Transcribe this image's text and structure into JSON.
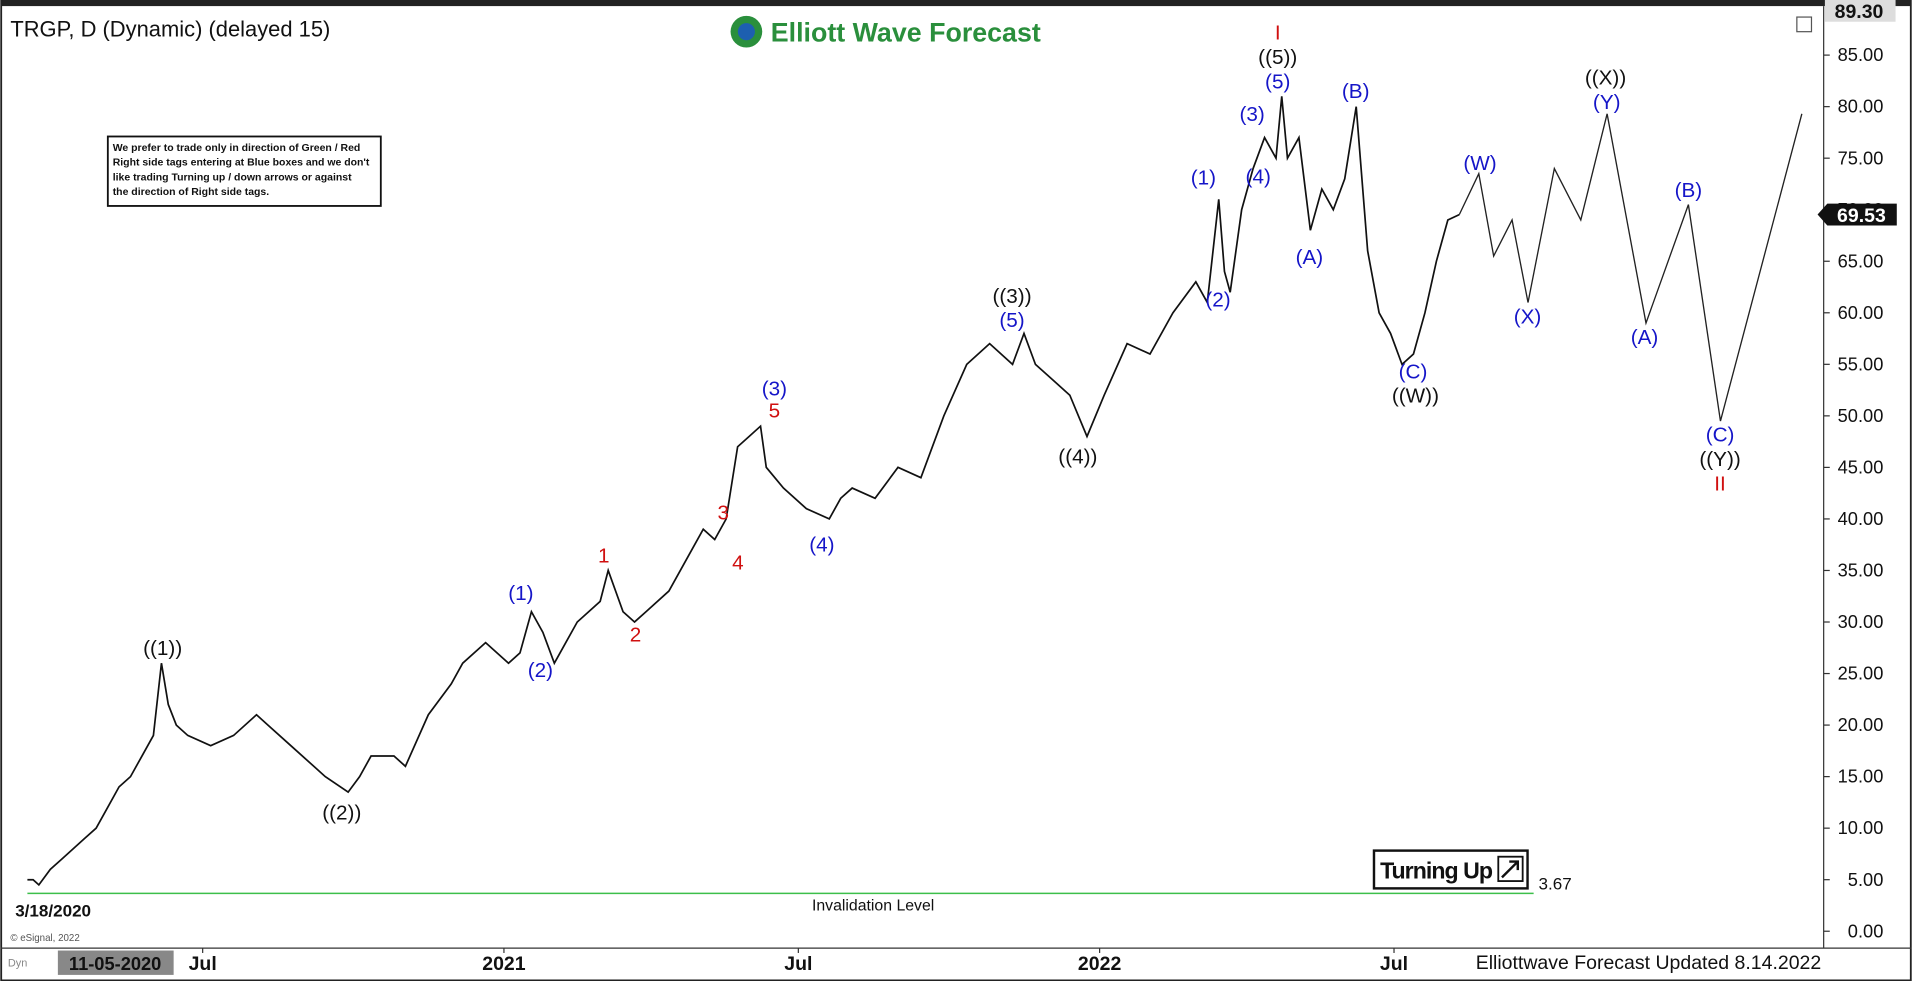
{
  "chart_data": {
    "type": "line",
    "title": "TRGP, D (Dynamic) (delayed 15)",
    "logo": "Elliott Wave Forecast",
    "note": [
      "We prefer to trade only in direction of Green / Red",
      "Right side tags entering at Blue boxes and we don't",
      "like trading Turning up / down arrows or against",
      "the direction of Right side tags."
    ],
    "button": "Turning Up",
    "start_label": "3/18/2020",
    "cursor_date": "11-05-2020",
    "copyright": "© eSignal, 2022",
    "dyn": "Dyn",
    "footer": "Elliottwave Forecast Updated 8.14.2022",
    "top_price": {
      "value": 89.3,
      "label": "89.30"
    },
    "last_price": 69.53,
    "invalidation": {
      "value": 3.67,
      "label": "Invalidation Level"
    },
    "ylim": [
      -1.4,
      89.4
    ],
    "yticks": [
      {
        "value": 0,
        "label": "0.00"
      },
      {
        "value": 5,
        "label": "5.00"
      },
      {
        "value": 10,
        "label": "10.00"
      },
      {
        "value": 15,
        "label": "15.00"
      },
      {
        "value": 20,
        "label": "20.00"
      },
      {
        "value": 25,
        "label": "25.00"
      },
      {
        "value": 30,
        "label": "30.00"
      },
      {
        "value": 35,
        "label": "35.00"
      },
      {
        "value": 40,
        "label": "40.00"
      },
      {
        "value": 45,
        "label": "45.00"
      },
      {
        "value": 50,
        "label": "50.00"
      },
      {
        "value": 55,
        "label": "55.00"
      },
      {
        "value": 60,
        "label": "60.00"
      },
      {
        "value": 65,
        "label": "65.00"
      },
      {
        "value": 70,
        "label": "70.00"
      },
      {
        "value": 75,
        "label": "75.00"
      },
      {
        "value": 80,
        "label": "80.00"
      },
      {
        "value": 85,
        "label": "85.00"
      }
    ],
    "xlim": [
      -2.34,
      156.7
    ],
    "xticks": [
      {
        "value": 15.3,
        "label": "Jul"
      },
      {
        "value": 41.6,
        "label": "2021"
      },
      {
        "value": 67.3,
        "label": "Jul"
      },
      {
        "value": 93.6,
        "label": "2022"
      },
      {
        "value": 119.3,
        "label": "Jul"
      }
    ],
    "series": [
      {
        "name": "TRGP",
        "color": "#111111",
        "x": [
          0,
          0.5,
          1,
          2,
          3,
          4,
          5,
          6,
          7,
          8,
          9,
          10,
          11,
          11.7,
          12.3,
          13,
          14,
          16,
          18,
          20,
          21,
          23,
          25,
          26,
          28,
          29,
          30,
          32,
          33,
          35,
          37,
          38,
          40,
          42,
          43,
          44,
          45,
          46,
          47,
          48,
          50,
          50.7,
          52,
          53,
          54,
          56,
          58,
          59,
          60,
          61,
          62,
          63,
          64,
          64.5,
          66,
          68,
          70,
          71,
          72,
          74,
          76,
          78,
          80,
          82,
          84,
          86,
          87,
          88,
          89,
          91,
          92.5,
          94,
          96,
          98,
          100,
          102,
          103,
          104,
          104.5,
          105,
          106,
          107,
          108,
          109,
          109.5,
          110,
          111,
          112,
          113,
          114,
          115,
          116,
          117,
          118,
          119,
          120,
          121,
          122,
          123,
          124,
          125
        ],
        "values": [
          5,
          5,
          4.5,
          6,
          7,
          8,
          9,
          10,
          12,
          14,
          15,
          17,
          19,
          26,
          22,
          20,
          19,
          18,
          19,
          21,
          20,
          18,
          16,
          15,
          13.5,
          15,
          17,
          17,
          16,
          21,
          24,
          26,
          28,
          26,
          27,
          31,
          29,
          26,
          28,
          30,
          32,
          35,
          31,
          30,
          31,
          33,
          37,
          39,
          38,
          40,
          47,
          48,
          49,
          45,
          43,
          41,
          40,
          42,
          43,
          42,
          45,
          44,
          50,
          55,
          57,
          55,
          58,
          55,
          54,
          52,
          48,
          52,
          57,
          56,
          60,
          63,
          61,
          71,
          64,
          62,
          70,
          74,
          77,
          75,
          81,
          75,
          77,
          68,
          72,
          70,
          73,
          80,
          66,
          60,
          58,
          55,
          56,
          60,
          65,
          69,
          69.53
        ]
      },
      {
        "name": "Projection",
        "color": "#222222",
        "x": [
          125,
          126.7,
          128,
          129.6,
          131,
          133.3,
          135.6,
          137.9,
          141.3,
          145,
          147.8,
          154.9
        ],
        "values": [
          69.53,
          73.5,
          65.5,
          69,
          61,
          74,
          69,
          79.3,
          59,
          70.5,
          49.5,
          79.3
        ]
      }
    ],
    "wave_labels": [
      {
        "text": "((1))",
        "color": "#111111"
      },
      {
        "text": "((2))",
        "color": "#111111"
      },
      {
        "text": "(1)",
        "color": "#1515c8"
      },
      {
        "text": "(2)",
        "color": "#1515c8"
      },
      {
        "text": "1",
        "color": "#d01010"
      },
      {
        "text": "2",
        "color": "#d01010"
      },
      {
        "text": "3",
        "color": "#d01010"
      },
      {
        "text": "4",
        "color": "#d01010"
      },
      {
        "text": "(3)",
        "color": "#1515c8"
      },
      {
        "text": "5",
        "color": "#d01010"
      },
      {
        "text": "(4)",
        "color": "#1515c8"
      },
      {
        "text": "((3))",
        "color": "#111111"
      },
      {
        "text": "(5)",
        "color": "#1515c8"
      },
      {
        "text": "((4))",
        "color": "#111111"
      },
      {
        "text": "(1)",
        "color": "#1515c8"
      },
      {
        "text": "(2)",
        "color": "#1515c8"
      },
      {
        "text": "(3)",
        "color": "#1515c8"
      },
      {
        "text": "(4)",
        "color": "#1515c8"
      },
      {
        "text": "(5)",
        "color": "#1515c8"
      },
      {
        "text": "((5))",
        "color": "#111111"
      },
      {
        "text": "I",
        "color": "#d01010"
      },
      {
        "text": "(B)",
        "color": "#1515c8"
      },
      {
        "text": "(A)",
        "color": "#1515c8"
      },
      {
        "text": "(C)",
        "color": "#1515c8"
      },
      {
        "text": "((W))",
        "color": "#111111"
      },
      {
        "text": "(W)",
        "color": "#1515c8"
      },
      {
        "text": "(X)",
        "color": "#1515c8"
      },
      {
        "text": "((X))",
        "color": "#111111"
      },
      {
        "text": "(Y)",
        "color": "#1515c8"
      },
      {
        "text": "(A)",
        "color": "#1515c8"
      },
      {
        "text": "(B)",
        "color": "#1515c8"
      },
      {
        "text": "(C)",
        "color": "#1515c8"
      },
      {
        "text": "((Y))",
        "color": "#111111"
      },
      {
        "text": "II",
        "color": "#d01010"
      }
    ]
  }
}
